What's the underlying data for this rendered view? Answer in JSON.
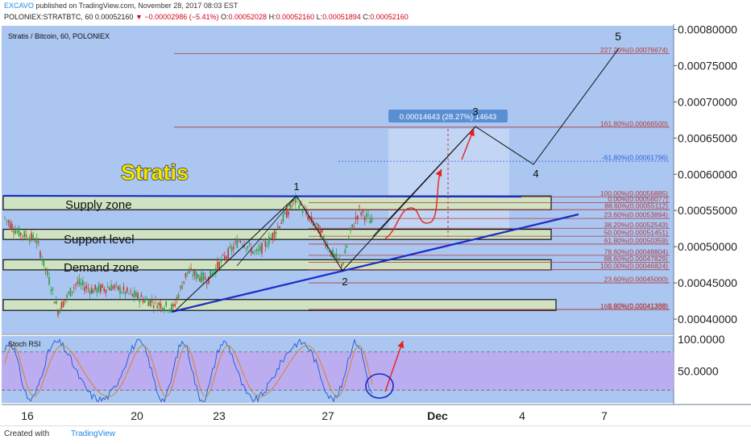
{
  "header": {
    "author": "EXCAVO",
    "published": "published on TradingView.com, November 28, 2017 08:03 EST",
    "symbol": "POLONIEX:STRATBTC, 60",
    "last": "0.00052160",
    "change": "−0.00002986 (−5.41%)",
    "o_label": "O:",
    "o": "0.00052028",
    "h_label": "H:",
    "h": "0.00052160",
    "l_label": "L:",
    "l": "0.00051894",
    "c_label": "C:",
    "c": "0.00052160"
  },
  "chart_title": "Stratis / Bitcoin, 60, POLONIEX",
  "watermark": "Stratis",
  "footer": {
    "created_with": "Created with",
    "brand": "TradingView"
  },
  "colors": {
    "plot_bg": "#aac6f1",
    "zone_fill": "#cfe3c2",
    "trend_blue": "#1b2bc8",
    "fib_line": "#b23b3b",
    "fib_blue": "#2d63d8",
    "candle_up": "#2f9e44",
    "candle_down": "#c0392b",
    "arrow_red": "#e8221b",
    "rsi_band": "#c0a7f0"
  },
  "chart_data": {
    "type": "candlestick",
    "y_axis": {
      "min": 0.00038,
      "max": 0.000805,
      "ticks": [
        "0.00080000",
        "0.00075000",
        "0.00070000",
        "0.00065000",
        "0.00060000",
        "0.00055000",
        "0.00050000",
        "0.00045000",
        "0.00040000"
      ]
    },
    "x_axis": {
      "ticks": [
        "16",
        "20",
        "23",
        "27",
        "Dec",
        "4",
        "7"
      ]
    },
    "zones": [
      {
        "label": "Supply zone",
        "low": 0.000551,
        "high": 0.00057
      },
      {
        "label": "Support level",
        "low": 0.00051,
        "high": 0.000524
      },
      {
        "label": "Demand zone",
        "low": 0.000468,
        "high": 0.000482
      },
      {
        "label": "",
        "low": 0.000412,
        "high": 0.000427
      }
    ],
    "fib_levels": [
      {
        "label": "227.20%(0.00076674)",
        "value": 0.00076674
      },
      {
        "label": "161.80%(0.00066500)",
        "value": 0.000665
      },
      {
        "label": "-61.80%(0.00061796)",
        "value": 0.00061796
      },
      {
        "label": "100.00%(0.00056885)",
        "value": 0.00056885
      },
      {
        "label": "0.00%(0.00056077)",
        "value": 0.00056077
      },
      {
        "label": "88.60%(0.00055112)",
        "value": 0.00055112
      },
      {
        "label": "23.60%(0.00053894)",
        "value": 0.00053894
      },
      {
        "label": "38.20%(0.00052543)",
        "value": 0.00052543
      },
      {
        "label": "50.00%(0.00051451)",
        "value": 0.00051451
      },
      {
        "label": "61.80%(0.00050359)",
        "value": 0.00050359
      },
      {
        "label": "78.60%(0.00048804)",
        "value": 0.00048804
      },
      {
        "label": "88.60%(0.00047829)",
        "value": 0.00047829
      },
      {
        "label": "100.00%(0.00046824)",
        "value": 0.00046824
      },
      {
        "label": "23.60%(0.00045000)",
        "value": 0.00045
      },
      {
        "label": "0.00%(0.00041338)",
        "value": 0.00041338
      },
      {
        "label": "161.80%(0.00041308)",
        "value": 0.00041308
      }
    ],
    "measure": {
      "label": "0.00014643 (28.27%) 14643"
    },
    "wave_labels": [
      "1",
      "2",
      "3",
      "4",
      "5"
    ],
    "stoch_rsi": {
      "title": "Stoch RSI",
      "ticks": [
        "100.0000",
        "50.0000"
      ],
      "upper": 80,
      "lower": 20
    }
  }
}
